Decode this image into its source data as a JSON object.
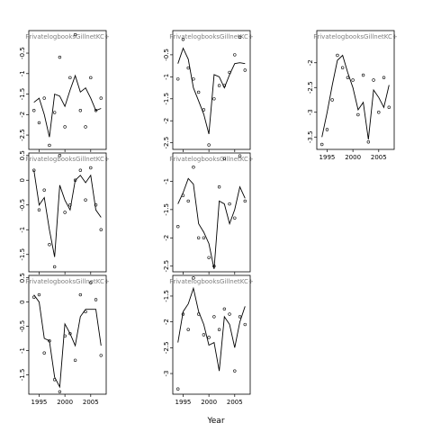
{
  "chart_data": [
    {
      "type": "scatter",
      "title": "PrivatelogbooksGillnetKC+",
      "x_ticks": [
        1995,
        2000,
        2005
      ],
      "x_tick_labels": [],
      "xlim": [
        1993,
        2008
      ],
      "y_ticks": [
        -0.5,
        -1.0,
        -1.5,
        -2.0,
        -2.5
      ],
      "y_tick_labels": [
        "-0.5",
        "-1",
        "-1.5",
        "-2",
        "-2.5"
      ],
      "ylim": [
        -2.85,
        0.05
      ],
      "points": [
        {
          "x": 1994,
          "y": -1.9
        },
        {
          "x": 1995,
          "y": -2.2
        },
        {
          "x": 1996,
          "y": -1.6
        },
        {
          "x": 1997,
          "y": -2.75
        },
        {
          "x": 1998,
          "y": -1.95
        },
        {
          "x": 1999,
          "y": -0.6
        },
        {
          "x": 2000,
          "y": -2.3
        },
        {
          "x": 2001,
          "y": -1.1
        },
        {
          "x": 2002,
          "y": -0.05
        },
        {
          "x": 2003,
          "y": -1.9
        },
        {
          "x": 2004,
          "y": -2.3
        },
        {
          "x": 2005,
          "y": -1.1
        },
        {
          "x": 2006,
          "y": -1.9
        },
        {
          "x": 2007,
          "y": -1.6
        }
      ],
      "line": [
        {
          "x": 1994,
          "y": -1.7
        },
        {
          "x": 1995,
          "y": -1.6
        },
        {
          "x": 1996,
          "y": -2.0
        },
        {
          "x": 1997,
          "y": -2.55
        },
        {
          "x": 1998,
          "y": -1.5
        },
        {
          "x": 1999,
          "y": -1.55
        },
        {
          "x": 2000,
          "y": -1.8
        },
        {
          "x": 2001,
          "y": -1.4
        },
        {
          "x": 2002,
          "y": -1.05
        },
        {
          "x": 2003,
          "y": -1.45
        },
        {
          "x": 2004,
          "y": -1.35
        },
        {
          "x": 2005,
          "y": -1.6
        },
        {
          "x": 2006,
          "y": -1.9
        },
        {
          "x": 2007,
          "y": -1.85
        }
      ]
    },
    {
      "type": "scatter",
      "title": "PrivatelogbooksGillnetKC+",
      "x_ticks": [
        1995,
        2000,
        2005
      ],
      "x_tick_labels": [],
      "xlim": [
        1993,
        2008
      ],
      "y_ticks": [
        -0.5,
        -1.0,
        -1.5,
        -2.0,
        -2.5
      ],
      "y_tick_labels": [
        "-0.5",
        "-1",
        "-1.5",
        "-2",
        "-2.5"
      ],
      "ylim": [
        -2.65,
        0.05
      ],
      "points": [
        {
          "x": 1994,
          "y": -1.05
        },
        {
          "x": 1995,
          "y": -0.15
        },
        {
          "x": 1996,
          "y": -0.8
        },
        {
          "x": 1997,
          "y": -1.05
        },
        {
          "x": 1998,
          "y": -1.35
        },
        {
          "x": 1999,
          "y": -1.75
        },
        {
          "x": 2000,
          "y": -2.55
        },
        {
          "x": 2001,
          "y": -1.5
        },
        {
          "x": 2002,
          "y": -1.2
        },
        {
          "x": 2003,
          "y": -1.2
        },
        {
          "x": 2004,
          "y": -0.9
        },
        {
          "x": 2005,
          "y": -0.5
        },
        {
          "x": 2006,
          "y": -0.1
        },
        {
          "x": 2007,
          "y": -0.85
        }
      ],
      "line": [
        {
          "x": 1994,
          "y": -0.7
        },
        {
          "x": 1995,
          "y": -0.35
        },
        {
          "x": 1996,
          "y": -0.6
        },
        {
          "x": 1997,
          "y": -1.25
        },
        {
          "x": 1998,
          "y": -1.55
        },
        {
          "x": 1999,
          "y": -1.85
        },
        {
          "x": 2000,
          "y": -2.3
        },
        {
          "x": 2001,
          "y": -0.95
        },
        {
          "x": 2002,
          "y": -1.0
        },
        {
          "x": 2003,
          "y": -1.25
        },
        {
          "x": 2004,
          "y": -0.95
        },
        {
          "x": 2005,
          "y": -0.7
        },
        {
          "x": 2006,
          "y": -0.68
        },
        {
          "x": 2007,
          "y": -0.7
        }
      ]
    },
    {
      "type": "scatter",
      "title": "PrivatelogbooksGillnetKC+",
      "x_ticks": [
        1995,
        2000,
        2005
      ],
      "x_tick_labels": [
        "1995",
        "2000",
        "2005"
      ],
      "xlim": [
        1993,
        2008
      ],
      "y_ticks": [
        -2.0,
        -2.5,
        -3.0,
        -3.5
      ],
      "y_tick_labels": [
        "-2",
        "-2.5",
        "-3",
        "-3.5"
      ],
      "ylim": [
        -3.75,
        -1.35
      ],
      "points": [
        {
          "x": 1994,
          "y": -3.65
        },
        {
          "x": 1995,
          "y": -3.35
        },
        {
          "x": 1996,
          "y": -2.75
        },
        {
          "x": 1997,
          "y": -1.85
        },
        {
          "x": 1998,
          "y": -2.1
        },
        {
          "x": 1999,
          "y": -2.3
        },
        {
          "x": 2000,
          "y": -2.35
        },
        {
          "x": 2001,
          "y": -3.05
        },
        {
          "x": 2002,
          "y": -2.25
        },
        {
          "x": 2003,
          "y": -3.6
        },
        {
          "x": 2004,
          "y": -2.35
        },
        {
          "x": 2005,
          "y": -3.0
        },
        {
          "x": 2006,
          "y": -2.3
        },
        {
          "x": 2007,
          "y": -2.9
        }
      ],
      "line": [
        {
          "x": 1994,
          "y": -3.5
        },
        {
          "x": 1995,
          "y": -3.0
        },
        {
          "x": 1996,
          "y": -2.45
        },
        {
          "x": 1997,
          "y": -1.95
        },
        {
          "x": 1998,
          "y": -1.85
        },
        {
          "x": 1999,
          "y": -2.2
        },
        {
          "x": 2000,
          "y": -2.5
        },
        {
          "x": 2001,
          "y": -2.95
        },
        {
          "x": 2002,
          "y": -2.8
        },
        {
          "x": 2003,
          "y": -3.55
        },
        {
          "x": 2004,
          "y": -2.55
        },
        {
          "x": 2005,
          "y": -2.7
        },
        {
          "x": 2006,
          "y": -2.9
        },
        {
          "x": 2007,
          "y": -2.45
        }
      ]
    },
    {
      "type": "scatter",
      "title": "PrivatelogbooksGillnetKC+",
      "x_ticks": [
        1995,
        2000,
        2005
      ],
      "x_tick_labels": [],
      "xlim": [
        1993,
        2008
      ],
      "y_ticks": [
        0.5,
        0.0,
        -0.5,
        -1.0,
        -1.5
      ],
      "y_tick_labels": [
        "0.5",
        "0",
        "-0.5",
        "-1",
        "-1.5"
      ],
      "ylim": [
        -1.85,
        0.55
      ],
      "points": [
        {
          "x": 1994,
          "y": 0.2
        },
        {
          "x": 1995,
          "y": -0.6
        },
        {
          "x": 1996,
          "y": -0.2
        },
        {
          "x": 1997,
          "y": -1.3
        },
        {
          "x": 1998,
          "y": -1.75
        },
        {
          "x": 1999,
          "y": 0.5
        },
        {
          "x": 2000,
          "y": -0.65
        },
        {
          "x": 2001,
          "y": -0.5
        },
        {
          "x": 2002,
          "y": 0.0
        },
        {
          "x": 2003,
          "y": 0.2
        },
        {
          "x": 2004,
          "y": -0.4
        },
        {
          "x": 2005,
          "y": 0.25
        },
        {
          "x": 2006,
          "y": -0.5
        },
        {
          "x": 2007,
          "y": -1.0
        }
      ],
      "line": [
        {
          "x": 1994,
          "y": 0.2
        },
        {
          "x": 1995,
          "y": -0.5
        },
        {
          "x": 1996,
          "y": -0.35
        },
        {
          "x": 1997,
          "y": -1.0
        },
        {
          "x": 1998,
          "y": -1.55
        },
        {
          "x": 1999,
          "y": -0.1
        },
        {
          "x": 2000,
          "y": -0.4
        },
        {
          "x": 2001,
          "y": -0.6
        },
        {
          "x": 2002,
          "y": 0.0
        },
        {
          "x": 2003,
          "y": 0.1
        },
        {
          "x": 2004,
          "y": -0.05
        },
        {
          "x": 2005,
          "y": 0.1
        },
        {
          "x": 2006,
          "y": -0.6
        },
        {
          "x": 2007,
          "y": -0.75
        }
      ]
    },
    {
      "type": "scatter",
      "title": "PrivatelogbooksGillnetKC+",
      "x_ticks": [
        1995,
        2000,
        2005
      ],
      "x_tick_labels": [],
      "xlim": [
        1993,
        2008
      ],
      "y_ticks": [
        -1.0,
        -1.5,
        -2.0,
        -2.5
      ],
      "y_tick_labels": [
        "-1",
        "-1.5",
        "-2",
        "-2.5"
      ],
      "ylim": [
        -2.6,
        -0.5
      ],
      "points": [
        {
          "x": 1994,
          "y": -1.8
        },
        {
          "x": 1995,
          "y": -1.25
        },
        {
          "x": 1996,
          "y": -1.35
        },
        {
          "x": 1997,
          "y": -0.75
        },
        {
          "x": 1998,
          "y": -2.0
        },
        {
          "x": 1999,
          "y": -2.0
        },
        {
          "x": 2000,
          "y": -2.35
        },
        {
          "x": 2001,
          "y": -2.5
        },
        {
          "x": 2002,
          "y": -1.1
        },
        {
          "x": 2003,
          "y": -0.6
        },
        {
          "x": 2004,
          "y": -1.4
        },
        {
          "x": 2005,
          "y": -1.65
        },
        {
          "x": 2006,
          "y": -0.55
        },
        {
          "x": 2007,
          "y": -1.35
        }
      ],
      "line": [
        {
          "x": 1994,
          "y": -1.4
        },
        {
          "x": 1995,
          "y": -1.2
        },
        {
          "x": 1996,
          "y": -0.95
        },
        {
          "x": 1997,
          "y": -1.05
        },
        {
          "x": 1998,
          "y": -1.75
        },
        {
          "x": 1999,
          "y": -1.9
        },
        {
          "x": 2000,
          "y": -2.1
        },
        {
          "x": 2001,
          "y": -2.55
        },
        {
          "x": 2002,
          "y": -1.35
        },
        {
          "x": 2003,
          "y": -1.4
        },
        {
          "x": 2004,
          "y": -1.75
        },
        {
          "x": 2005,
          "y": -1.5
        },
        {
          "x": 2006,
          "y": -1.1
        },
        {
          "x": 2007,
          "y": -1.3
        }
      ]
    },
    {
      "type": "scatter",
      "title": "PrivatelogbooksGillnetKC+",
      "x_ticks": [
        1995,
        2000,
        2005
      ],
      "x_tick_labels": [
        "1995",
        "2000",
        "2005"
      ],
      "xlim": [
        1993,
        2008
      ],
      "y_ticks": [
        0.5,
        0.0,
        -0.5,
        -1.0,
        -1.5
      ],
      "y_tick_labels": [
        "0.5",
        "0",
        "-0.5",
        "-1",
        "-1.5"
      ],
      "ylim": [
        -1.9,
        0.55
      ],
      "points": [
        {
          "x": 1994,
          "y": 0.1
        },
        {
          "x": 1995,
          "y": 0.15
        },
        {
          "x": 1996,
          "y": -1.05
        },
        {
          "x": 1997,
          "y": -0.8
        },
        {
          "x": 1998,
          "y": -1.6
        },
        {
          "x": 1999,
          "y": -1.85
        },
        {
          "x": 2000,
          "y": -0.7
        },
        {
          "x": 2001,
          "y": -0.65
        },
        {
          "x": 2002,
          "y": -1.2
        },
        {
          "x": 2003,
          "y": 0.15
        },
        {
          "x": 2004,
          "y": -0.2
        },
        {
          "x": 2005,
          "y": 0.4
        },
        {
          "x": 2006,
          "y": 0.05
        },
        {
          "x": 2007,
          "y": -1.1
        }
      ],
      "line": [
        {
          "x": 1994,
          "y": 0.15
        },
        {
          "x": 1995,
          "y": 0.0
        },
        {
          "x": 1996,
          "y": -0.75
        },
        {
          "x": 1997,
          "y": -0.8
        },
        {
          "x": 1998,
          "y": -1.55
        },
        {
          "x": 1999,
          "y": -1.75
        },
        {
          "x": 2000,
          "y": -0.45
        },
        {
          "x": 2001,
          "y": -0.65
        },
        {
          "x": 2002,
          "y": -0.9
        },
        {
          "x": 2003,
          "y": -0.3
        },
        {
          "x": 2004,
          "y": -0.15
        },
        {
          "x": 2005,
          "y": -0.15
        },
        {
          "x": 2006,
          "y": -0.15
        },
        {
          "x": 2007,
          "y": -0.9
        }
      ]
    },
    {
      "type": "scatter",
      "title": "PrivatelogbooksGillnetKC+",
      "x_ticks": [
        1995,
        2000,
        2005
      ],
      "x_tick_labels": [
        "1995",
        "2000",
        "2005"
      ],
      "xlim": [
        1993,
        2008
      ],
      "y_ticks": [
        -1.5,
        -2.0,
        -2.5,
        -3.0
      ],
      "y_tick_labels": [
        "-1.5",
        "-2",
        "-2.5",
        "-3"
      ],
      "ylim": [
        -3.4,
        -1.1
      ],
      "points": [
        {
          "x": 1994,
          "y": -3.3
        },
        {
          "x": 1995,
          "y": -1.85
        },
        {
          "x": 1996,
          "y": -2.15
        },
        {
          "x": 1997,
          "y": -1.15
        },
        {
          "x": 1998,
          "y": -1.85
        },
        {
          "x": 1999,
          "y": -2.25
        },
        {
          "x": 2000,
          "y": -2.3
        },
        {
          "x": 2001,
          "y": -1.9
        },
        {
          "x": 2002,
          "y": -2.15
        },
        {
          "x": 2003,
          "y": -1.75
        },
        {
          "x": 2004,
          "y": -1.85
        },
        {
          "x": 2005,
          "y": -2.95
        },
        {
          "x": 2006,
          "y": -1.9
        },
        {
          "x": 2007,
          "y": -2.05
        }
      ],
      "line": [
        {
          "x": 1994,
          "y": -2.4
        },
        {
          "x": 1995,
          "y": -1.8
        },
        {
          "x": 1996,
          "y": -1.65
        },
        {
          "x": 1997,
          "y": -1.35
        },
        {
          "x": 1998,
          "y": -1.8
        },
        {
          "x": 1999,
          "y": -2.05
        },
        {
          "x": 2000,
          "y": -2.45
        },
        {
          "x": 2001,
          "y": -2.4
        },
        {
          "x": 2002,
          "y": -2.95
        },
        {
          "x": 2003,
          "y": -1.9
        },
        {
          "x": 2004,
          "y": -2.05
        },
        {
          "x": 2005,
          "y": -2.5
        },
        {
          "x": 2006,
          "y": -2.0
        },
        {
          "x": 2007,
          "y": -1.7
        }
      ]
    }
  ],
  "figure": {
    "xlabel": "Year"
  }
}
